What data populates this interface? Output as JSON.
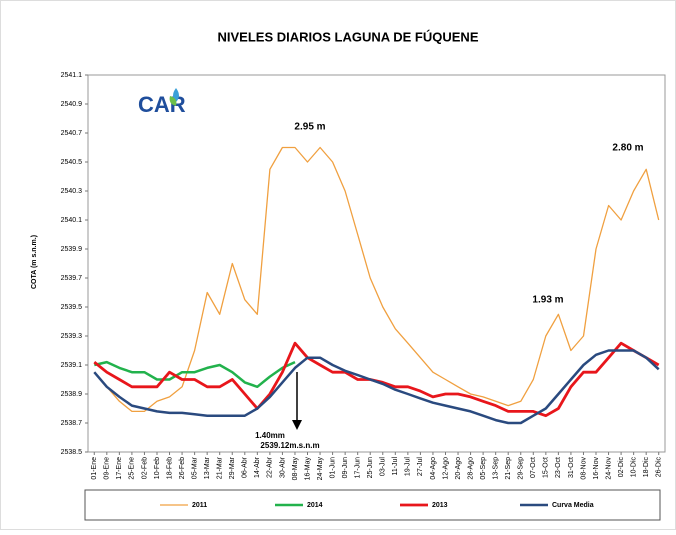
{
  "chart_data": {
    "type": "line",
    "title": "NIVELES DIARIOS LAGUNA DE FÚQUENE",
    "y_label": "COTA (m s.n.m.)",
    "logo_text": "CAR",
    "categories": [
      "01-Ene",
      "09-Ene",
      "17-Ene",
      "25-Ene",
      "02-Feb",
      "10-Feb",
      "18-Feb",
      "26-Feb",
      "05-Mar",
      "13-Mar",
      "21-Mar",
      "29-Mar",
      "06-Abr",
      "14-Abr",
      "22-Abr",
      "30-Abr",
      "08-May",
      "16-May",
      "24-May",
      "01-Jun",
      "09-Jun",
      "17-Jun",
      "25-Jun",
      "03-Jul",
      "11-Jul",
      "19-Jul",
      "27-Jul",
      "04-Ago",
      "12-Ago",
      "20-Ago",
      "28-Ago",
      "05-Sep",
      "13-Sep",
      "21-Sep",
      "29-Sep",
      "07-Oct",
      "15-Oct",
      "23-Oct",
      "31-Oct",
      "08-Nov",
      "16-Nov",
      "24-Nov",
      "02-Dic",
      "10-Dic",
      "18-Dic",
      "26-Dic"
    ],
    "ylim": [
      2538.5,
      2541.1
    ],
    "yticks": [
      2538.5,
      2538.7,
      2538.9,
      2539.1,
      2539.3,
      2539.5,
      2539.7,
      2539.9,
      2540.1,
      2540.3,
      2540.5,
      2540.7,
      2540.9,
      2541.1
    ],
    "series": [
      {
        "name": "2011",
        "color": "#f0a040",
        "width": 1.3,
        "values": [
          2539.05,
          2538.95,
          2538.85,
          2538.78,
          2538.78,
          2538.85,
          2538.88,
          2538.95,
          2539.2,
          2539.6,
          2539.45,
          2539.8,
          2539.55,
          2539.45,
          2540.45,
          2540.6,
          2540.6,
          2540.5,
          2540.6,
          2540.5,
          2540.3,
          2540.0,
          2539.7,
          2539.5,
          2539.35,
          2539.25,
          2539.15,
          2539.05,
          2539.0,
          2538.95,
          2538.9,
          2538.88,
          2538.85,
          2538.82,
          2538.85,
          2539.0,
          2539.3,
          2539.45,
          2539.2,
          2539.3,
          2539.9,
          2540.2,
          2540.1,
          2540.3,
          2540.45,
          2540.1
        ]
      },
      {
        "name": "2014",
        "color": "#22b24c",
        "width": 2.5,
        "values": [
          2539.1,
          2539.12,
          2539.08,
          2539.05,
          2539.05,
          2539.0,
          2539.0,
          2539.05,
          2539.05,
          2539.08,
          2539.1,
          2539.05,
          2538.98,
          2538.95,
          2539.02,
          2539.08,
          2539.12,
          null,
          null,
          null,
          null,
          null,
          null,
          null,
          null,
          null,
          null,
          null,
          null,
          null,
          null,
          null,
          null,
          null,
          null,
          null,
          null,
          null,
          null,
          null,
          null,
          null,
          null,
          null,
          null,
          null
        ]
      },
      {
        "name": "2013",
        "color": "#e8161b",
        "width": 2.8,
        "values": [
          2539.12,
          2539.05,
          2539.0,
          2538.95,
          2538.95,
          2538.95,
          2539.05,
          2539.0,
          2539.0,
          2538.95,
          2538.95,
          2539.0,
          2538.9,
          2538.8,
          2538.9,
          2539.05,
          2539.25,
          2539.15,
          2539.1,
          2539.05,
          2539.05,
          2539.0,
          2539.0,
          2538.98,
          2538.95,
          2538.95,
          2538.92,
          2538.88,
          2538.9,
          2538.9,
          2538.88,
          2538.85,
          2538.82,
          2538.78,
          2538.78,
          2538.78,
          2538.75,
          2538.8,
          2538.95,
          2539.05,
          2539.05,
          2539.15,
          2539.25,
          2539.2,
          2539.15,
          2539.1
        ]
      },
      {
        "name": "Curva Media",
        "color": "#2a4a7f",
        "width": 2.5,
        "values": [
          2539.05,
          2538.95,
          2538.88,
          2538.82,
          2538.8,
          2538.78,
          2538.77,
          2538.77,
          2538.76,
          2538.75,
          2538.75,
          2538.75,
          2538.75,
          2538.8,
          2538.88,
          2538.98,
          2539.08,
          2539.15,
          2539.15,
          2539.1,
          2539.06,
          2539.03,
          2539.0,
          2538.97,
          2538.93,
          2538.9,
          2538.87,
          2538.84,
          2538.82,
          2538.8,
          2538.78,
          2538.75,
          2538.72,
          2538.7,
          2538.7,
          2538.75,
          2538.8,
          2538.9,
          2539.0,
          2539.1,
          2539.17,
          2539.2,
          2539.2,
          2539.2,
          2539.15,
          2539.07
        ]
      }
    ],
    "annotations": [
      "2.95 m",
      "2.80 m",
      "1.93 m",
      "1.40mm",
      "2539.12m.s.n.m"
    ]
  }
}
